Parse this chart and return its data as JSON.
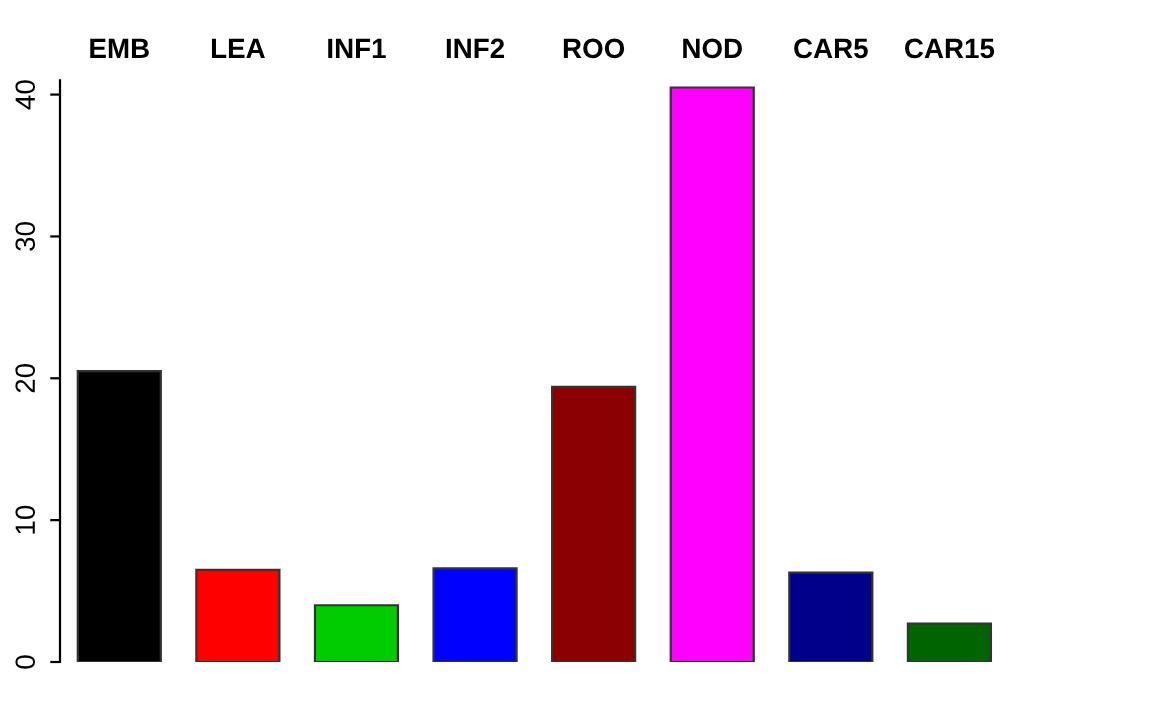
{
  "chart_data": {
    "type": "bar",
    "categories": [
      "EMB",
      "LEA",
      "INF1",
      "INF2",
      "ROO",
      "NOD",
      "CAR5",
      "CAR15"
    ],
    "values": [
      20.5,
      6.5,
      4.0,
      6.6,
      19.4,
      40.5,
      6.3,
      2.7
    ],
    "colors": [
      "#000000",
      "#ff0000",
      "#00cd00",
      "#0000ff",
      "#8b0000",
      "#ff00ff",
      "#00008b",
      "#006400"
    ],
    "ylim": [
      0,
      41
    ],
    "yticks": [
      0,
      10,
      20,
      30,
      40
    ],
    "grid": false
  }
}
